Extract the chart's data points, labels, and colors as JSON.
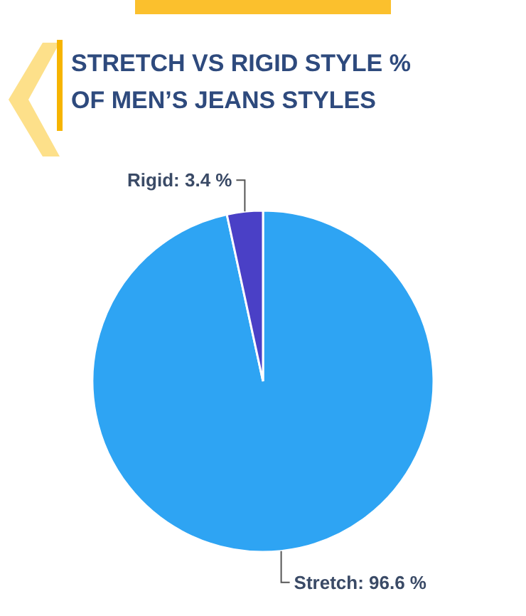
{
  "chart_data": {
    "type": "pie",
    "title": "STRETCH VS RIGID STYLE % OF MEN’S JEANS STYLES",
    "categories": [
      "Stretch",
      "Rigid"
    ],
    "values": [
      96.6,
      3.4
    ],
    "colors": [
      "#2ea4f3",
      "#4a40c6"
    ],
    "value_labels": [
      ": 96.6 %",
      ": 3.4 %"
    ]
  }
}
